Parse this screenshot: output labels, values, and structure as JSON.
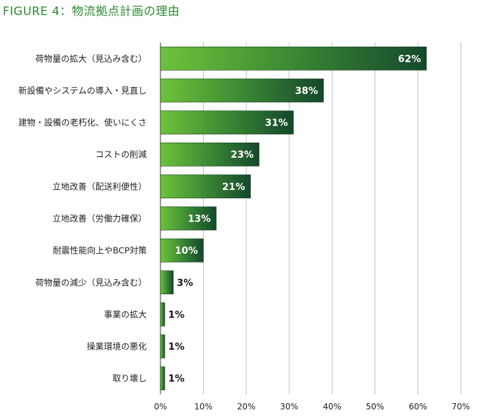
{
  "title": "FIGURE 4：物流拠点計画の理由",
  "colors": {
    "title": "#2f8a34",
    "bar_light": "#6fc23a",
    "bar_dark": "#14482c",
    "grid": "#bdbdbd",
    "axis": "#555555"
  },
  "chart_data": {
    "type": "bar",
    "orientation": "horizontal",
    "title": "FIGURE 4：物流拠点計画の理由",
    "xlabel": "",
    "ylabel": "",
    "categories": [
      "荷物量の拡大（見込み含む）",
      "新設備やシステムの導入・見直し",
      "建物・設備の老朽化、使いにくさ",
      "コストの削減",
      "立地改善（配送利便性）",
      "立地改善（労働力確保）",
      "耐震性能向上やBCP対策",
      "荷物量の減少（見込み含む）",
      "事業の拡大",
      "操業環境の悪化",
      "取り壊し"
    ],
    "values": [
      62,
      38,
      31,
      23,
      21,
      13,
      10,
      3,
      1,
      1,
      1
    ],
    "value_labels": [
      "62%",
      "38%",
      "31%",
      "23%",
      "21%",
      "13%",
      "10%",
      "3%",
      "1%",
      "1%",
      "1%"
    ],
    "xlim": [
      0,
      70
    ],
    "xticks": [
      0,
      10,
      20,
      30,
      40,
      50,
      60,
      70
    ],
    "xtick_labels": [
      "0%",
      "10%",
      "20%",
      "30%",
      "40%",
      "50%",
      "60%",
      "70%"
    ],
    "grid": true,
    "legend": "none"
  }
}
